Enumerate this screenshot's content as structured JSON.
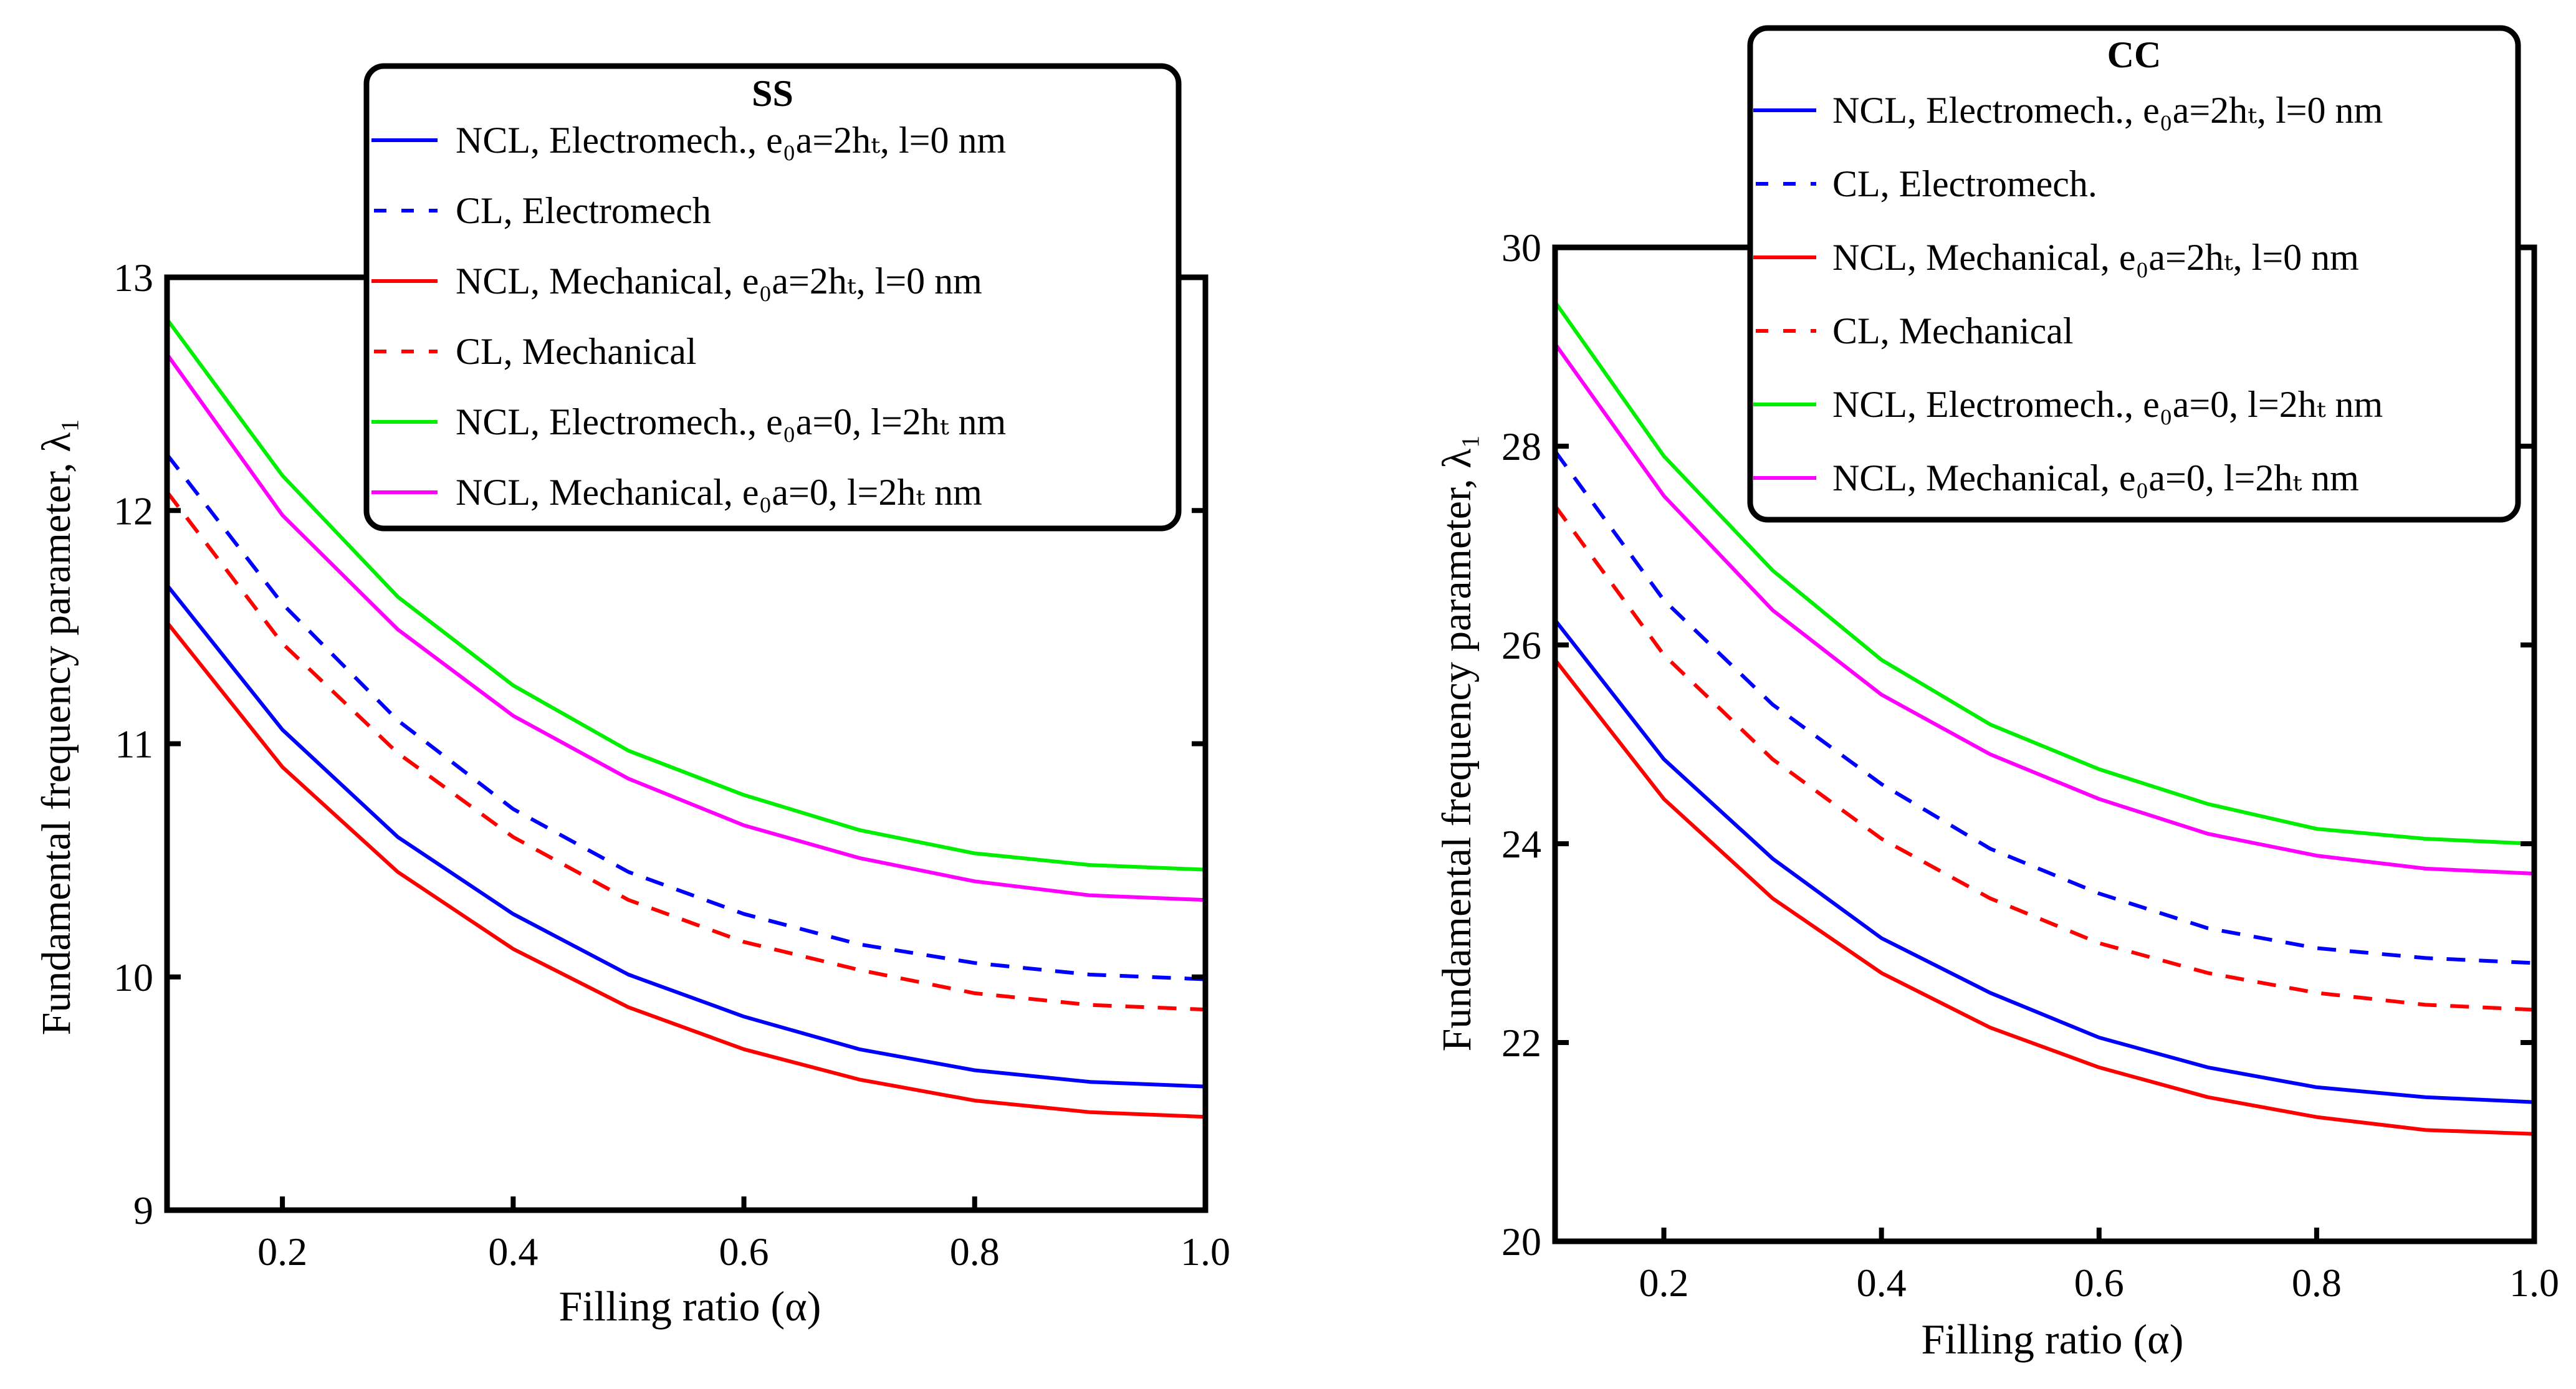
{
  "chart_data": [
    {
      "type": "line",
      "title": "SS",
      "xlabel": "Filling ratio (α)",
      "ylabel": "Fundamental frequency parameter, λ₁",
      "xlim": [
        0.1,
        1.0
      ],
      "ylim": [
        9,
        13
      ],
      "xticks": [
        "0.2",
        "0.4",
        "0.6",
        "0.8",
        "1.0"
      ],
      "xtick_values": [
        0.2,
        0.4,
        0.6,
        0.8,
        1.0
      ],
      "yticks": [
        "9",
        "10",
        "11",
        "12",
        "13"
      ],
      "ytick_values": [
        9,
        10,
        11,
        12,
        13
      ],
      "legend_position": "top-center",
      "x": [
        0.1,
        0.2,
        0.3,
        0.4,
        0.5,
        0.6,
        0.7,
        0.8,
        0.9,
        1.0
      ],
      "series": [
        {
          "name": "NCL, Electromech., e₀a=2hₜ, l=0 nm",
          "color": "#0000ff",
          "dash": false,
          "values": [
            11.68,
            11.06,
            10.6,
            10.27,
            10.01,
            9.83,
            9.69,
            9.6,
            9.55,
            9.53
          ]
        },
        {
          "name": "CL, Electromech",
          "color": "#0000ff",
          "dash": true,
          "values": [
            12.24,
            11.6,
            11.1,
            10.72,
            10.45,
            10.27,
            10.14,
            10.06,
            10.01,
            9.99
          ]
        },
        {
          "name": "NCL, Mechanical, e₀a=2hₜ, l=0 nm",
          "color": "#ff0000",
          "dash": false,
          "values": [
            11.52,
            10.9,
            10.45,
            10.12,
            9.87,
            9.69,
            9.56,
            9.47,
            9.42,
            9.4
          ]
        },
        {
          "name": "CL, Mechanical",
          "color": "#ff0000",
          "dash": true,
          "values": [
            12.08,
            11.43,
            10.96,
            10.6,
            10.33,
            10.15,
            10.03,
            9.93,
            9.88,
            9.86
          ]
        },
        {
          "name": "NCL, Electromech., e₀a=0, l=2hₜ nm",
          "color": "#00ee00",
          "dash": false,
          "values": [
            12.82,
            12.15,
            11.63,
            11.25,
            10.97,
            10.78,
            10.63,
            10.53,
            10.48,
            10.46
          ]
        },
        {
          "name": "NCL, Mechanical, e₀a=0, l=2hₜ nm",
          "color": "#ff00ff",
          "dash": false,
          "values": [
            12.67,
            11.98,
            11.49,
            11.12,
            10.85,
            10.65,
            10.51,
            10.41,
            10.35,
            10.33
          ]
        }
      ]
    },
    {
      "type": "line",
      "title": "CC",
      "xlabel": "Filling ratio (α)",
      "ylabel": "Fundamental frequency parameter, λ₁",
      "xlim": [
        0.1,
        1.0
      ],
      "ylim": [
        20,
        30
      ],
      "xticks": [
        "0.2",
        "0.4",
        "0.6",
        "0.8",
        "1.0"
      ],
      "xtick_values": [
        0.2,
        0.4,
        0.6,
        0.8,
        1.0
      ],
      "yticks": [
        "20",
        "22",
        "24",
        "26",
        "28",
        "30"
      ],
      "ytick_values": [
        20,
        22,
        24,
        26,
        28,
        30
      ],
      "legend_position": "top-right",
      "x": [
        0.1,
        0.2,
        0.3,
        0.4,
        0.5,
        0.6,
        0.7,
        0.8,
        0.9,
        1.0
      ],
      "series": [
        {
          "name": "NCL, Electromech., e₀a=2hₜ, l=0 nm",
          "color": "#0000ff",
          "dash": false,
          "values": [
            26.25,
            24.85,
            23.85,
            23.05,
            22.5,
            22.05,
            21.75,
            21.55,
            21.45,
            21.4
          ]
        },
        {
          "name": "CL, Electromech.",
          "color": "#0000ff",
          "dash": true,
          "values": [
            27.95,
            26.45,
            25.4,
            24.6,
            23.95,
            23.5,
            23.15,
            22.95,
            22.85,
            22.8
          ]
        },
        {
          "name": "NCL, Mechanical, e₀a=2hₜ, l=0 nm",
          "color": "#ff0000",
          "dash": false,
          "values": [
            25.85,
            24.45,
            23.45,
            22.7,
            22.15,
            21.75,
            21.45,
            21.25,
            21.12,
            21.08
          ]
        },
        {
          "name": "CL, Mechanical",
          "color": "#ff0000",
          "dash": true,
          "values": [
            27.4,
            25.9,
            24.85,
            24.05,
            23.45,
            23.0,
            22.7,
            22.5,
            22.38,
            22.33
          ]
        },
        {
          "name": "NCL, Electromech., e₀a=0, l=2hₜ nm",
          "color": "#00ee00",
          "dash": false,
          "values": [
            29.45,
            27.9,
            26.75,
            25.85,
            25.2,
            24.75,
            24.4,
            24.15,
            24.05,
            24.0
          ]
        },
        {
          "name": "NCL, Mechanical, e₀a=0, l=2hₜ nm",
          "color": "#ff00ff",
          "dash": false,
          "values": [
            29.03,
            27.5,
            26.35,
            25.5,
            24.9,
            24.45,
            24.1,
            23.88,
            23.75,
            23.7
          ]
        }
      ]
    }
  ]
}
